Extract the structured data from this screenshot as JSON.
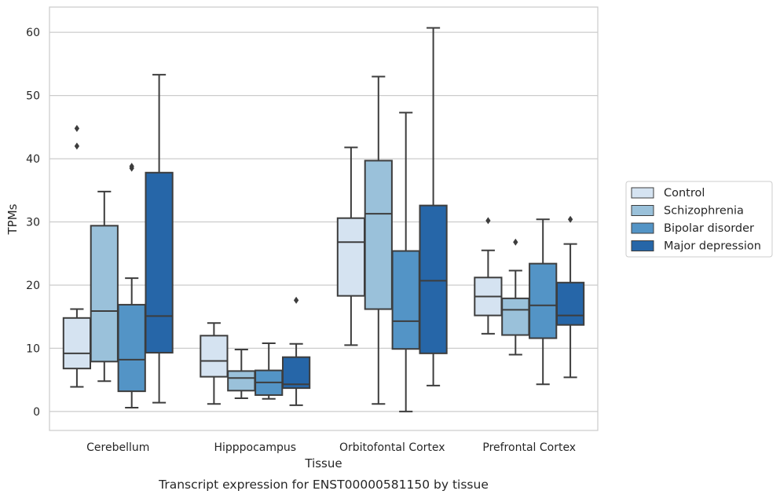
{
  "caption": "Transcript expression for ENST00000581150 by tissue",
  "chart_data": {
    "type": "box",
    "xlabel": "Tissue",
    "ylabel": "TPMs",
    "ylim": [
      -3,
      64
    ],
    "yticks": [
      0,
      10,
      20,
      30,
      40,
      50,
      60
    ],
    "grid": "horizontal",
    "legend_position": "right",
    "categories": [
      "Cerebellum",
      "Hipppocampus",
      "Orbitofontal Cortex",
      "Prefrontal Cortex"
    ],
    "series": [
      {
        "name": "Control",
        "color": "#d5e3f1",
        "boxes": [
          {
            "whislo": 3.9,
            "q1": 6.8,
            "med": 9.2,
            "q3": 14.8,
            "whishi": 16.2,
            "fliers": [
              42.0,
              44.8
            ]
          },
          {
            "whislo": 1.2,
            "q1": 5.5,
            "med": 8.0,
            "q3": 12.0,
            "whishi": 14.0,
            "fliers": []
          },
          {
            "whislo": 10.5,
            "q1": 18.3,
            "med": 26.8,
            "q3": 30.6,
            "whishi": 41.8,
            "fliers": []
          },
          {
            "whislo": 12.3,
            "q1": 15.2,
            "med": 18.2,
            "q3": 21.2,
            "whishi": 25.5,
            "fliers": [
              30.2
            ]
          }
        ]
      },
      {
        "name": "Schizophrenia",
        "color": "#9ac1da",
        "boxes": [
          {
            "whislo": 4.8,
            "q1": 7.9,
            "med": 15.9,
            "q3": 29.4,
            "whishi": 34.8,
            "fliers": []
          },
          {
            "whislo": 2.1,
            "q1": 3.3,
            "med": 5.3,
            "q3": 6.4,
            "whishi": 9.8,
            "fliers": []
          },
          {
            "whislo": 1.2,
            "q1": 16.2,
            "med": 31.3,
            "q3": 39.7,
            "whishi": 53.0,
            "fliers": []
          },
          {
            "whislo": 9.0,
            "q1": 12.1,
            "med": 16.1,
            "q3": 17.9,
            "whishi": 22.3,
            "fliers": [
              26.8
            ]
          }
        ]
      },
      {
        "name": "Bipolar disorder",
        "color": "#5394c6",
        "boxes": [
          {
            "whislo": 0.6,
            "q1": 3.2,
            "med": 8.2,
            "q3": 16.9,
            "whishi": 21.1,
            "fliers": [
              38.5,
              38.8
            ]
          },
          {
            "whislo": 2.0,
            "q1": 2.6,
            "med": 4.6,
            "q3": 6.5,
            "whishi": 10.8,
            "fliers": []
          },
          {
            "whislo": 0.0,
            "q1": 9.9,
            "med": 14.3,
            "q3": 25.4,
            "whishi": 47.3,
            "fliers": []
          },
          {
            "whislo": 4.3,
            "q1": 11.6,
            "med": 16.8,
            "q3": 23.4,
            "whishi": 30.4,
            "fliers": []
          }
        ]
      },
      {
        "name": "Major depression",
        "color": "#2666a8",
        "boxes": [
          {
            "whislo": 1.4,
            "q1": 9.3,
            "med": 15.1,
            "q3": 37.8,
            "whishi": 53.3,
            "fliers": []
          },
          {
            "whislo": 1.0,
            "q1": 3.7,
            "med": 4.3,
            "q3": 8.6,
            "whishi": 10.7,
            "fliers": [
              17.6
            ]
          },
          {
            "whislo": 4.1,
            "q1": 9.2,
            "med": 20.7,
            "q3": 32.6,
            "whishi": 60.7,
            "fliers": []
          },
          {
            "whislo": 5.4,
            "q1": 13.7,
            "med": 15.2,
            "q3": 20.4,
            "whishi": 26.5,
            "fliers": [
              30.4
            ]
          }
        ]
      }
    ]
  }
}
